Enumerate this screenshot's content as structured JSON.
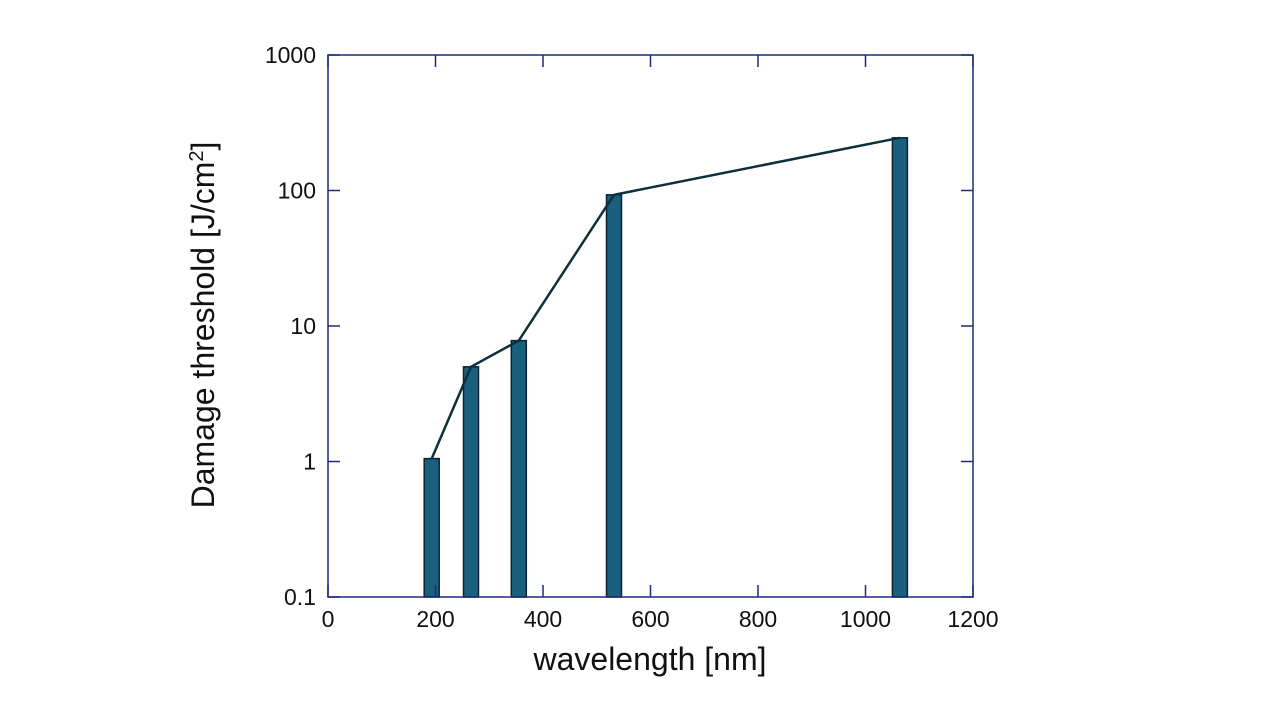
{
  "chart_data": {
    "type": "bar",
    "title": "",
    "xlabel": "wavelength [nm]",
    "ylabel_main": "Damage threshold [J/cm",
    "ylabel_sup": "2",
    "ylabel_end": "]",
    "y_scale": "log",
    "xlim": [
      0,
      1200
    ],
    "ylim": [
      0.1,
      1000
    ],
    "xticks": [
      0,
      200,
      400,
      600,
      800,
      1000,
      1200
    ],
    "xtick_labels": [
      "0",
      "200",
      "400",
      "600",
      "800",
      "1000",
      "1200"
    ],
    "yticks": [
      0.1,
      1,
      10,
      100,
      1000
    ],
    "ytick_labels": [
      "0.1",
      "1",
      "10",
      "100",
      "1000"
    ],
    "x": [
      193,
      266,
      355,
      532,
      1064
    ],
    "values": [
      1.05,
      5,
      7.8,
      93,
      245
    ],
    "connecting_line": true,
    "grid": false,
    "legend": "none",
    "colors": {
      "bar_fill": "#1a5f7e",
      "bar_stroke": "#0b2330",
      "line": "#0f2f3a",
      "frame": "#1f2a7a",
      "text": "#111111"
    }
  }
}
